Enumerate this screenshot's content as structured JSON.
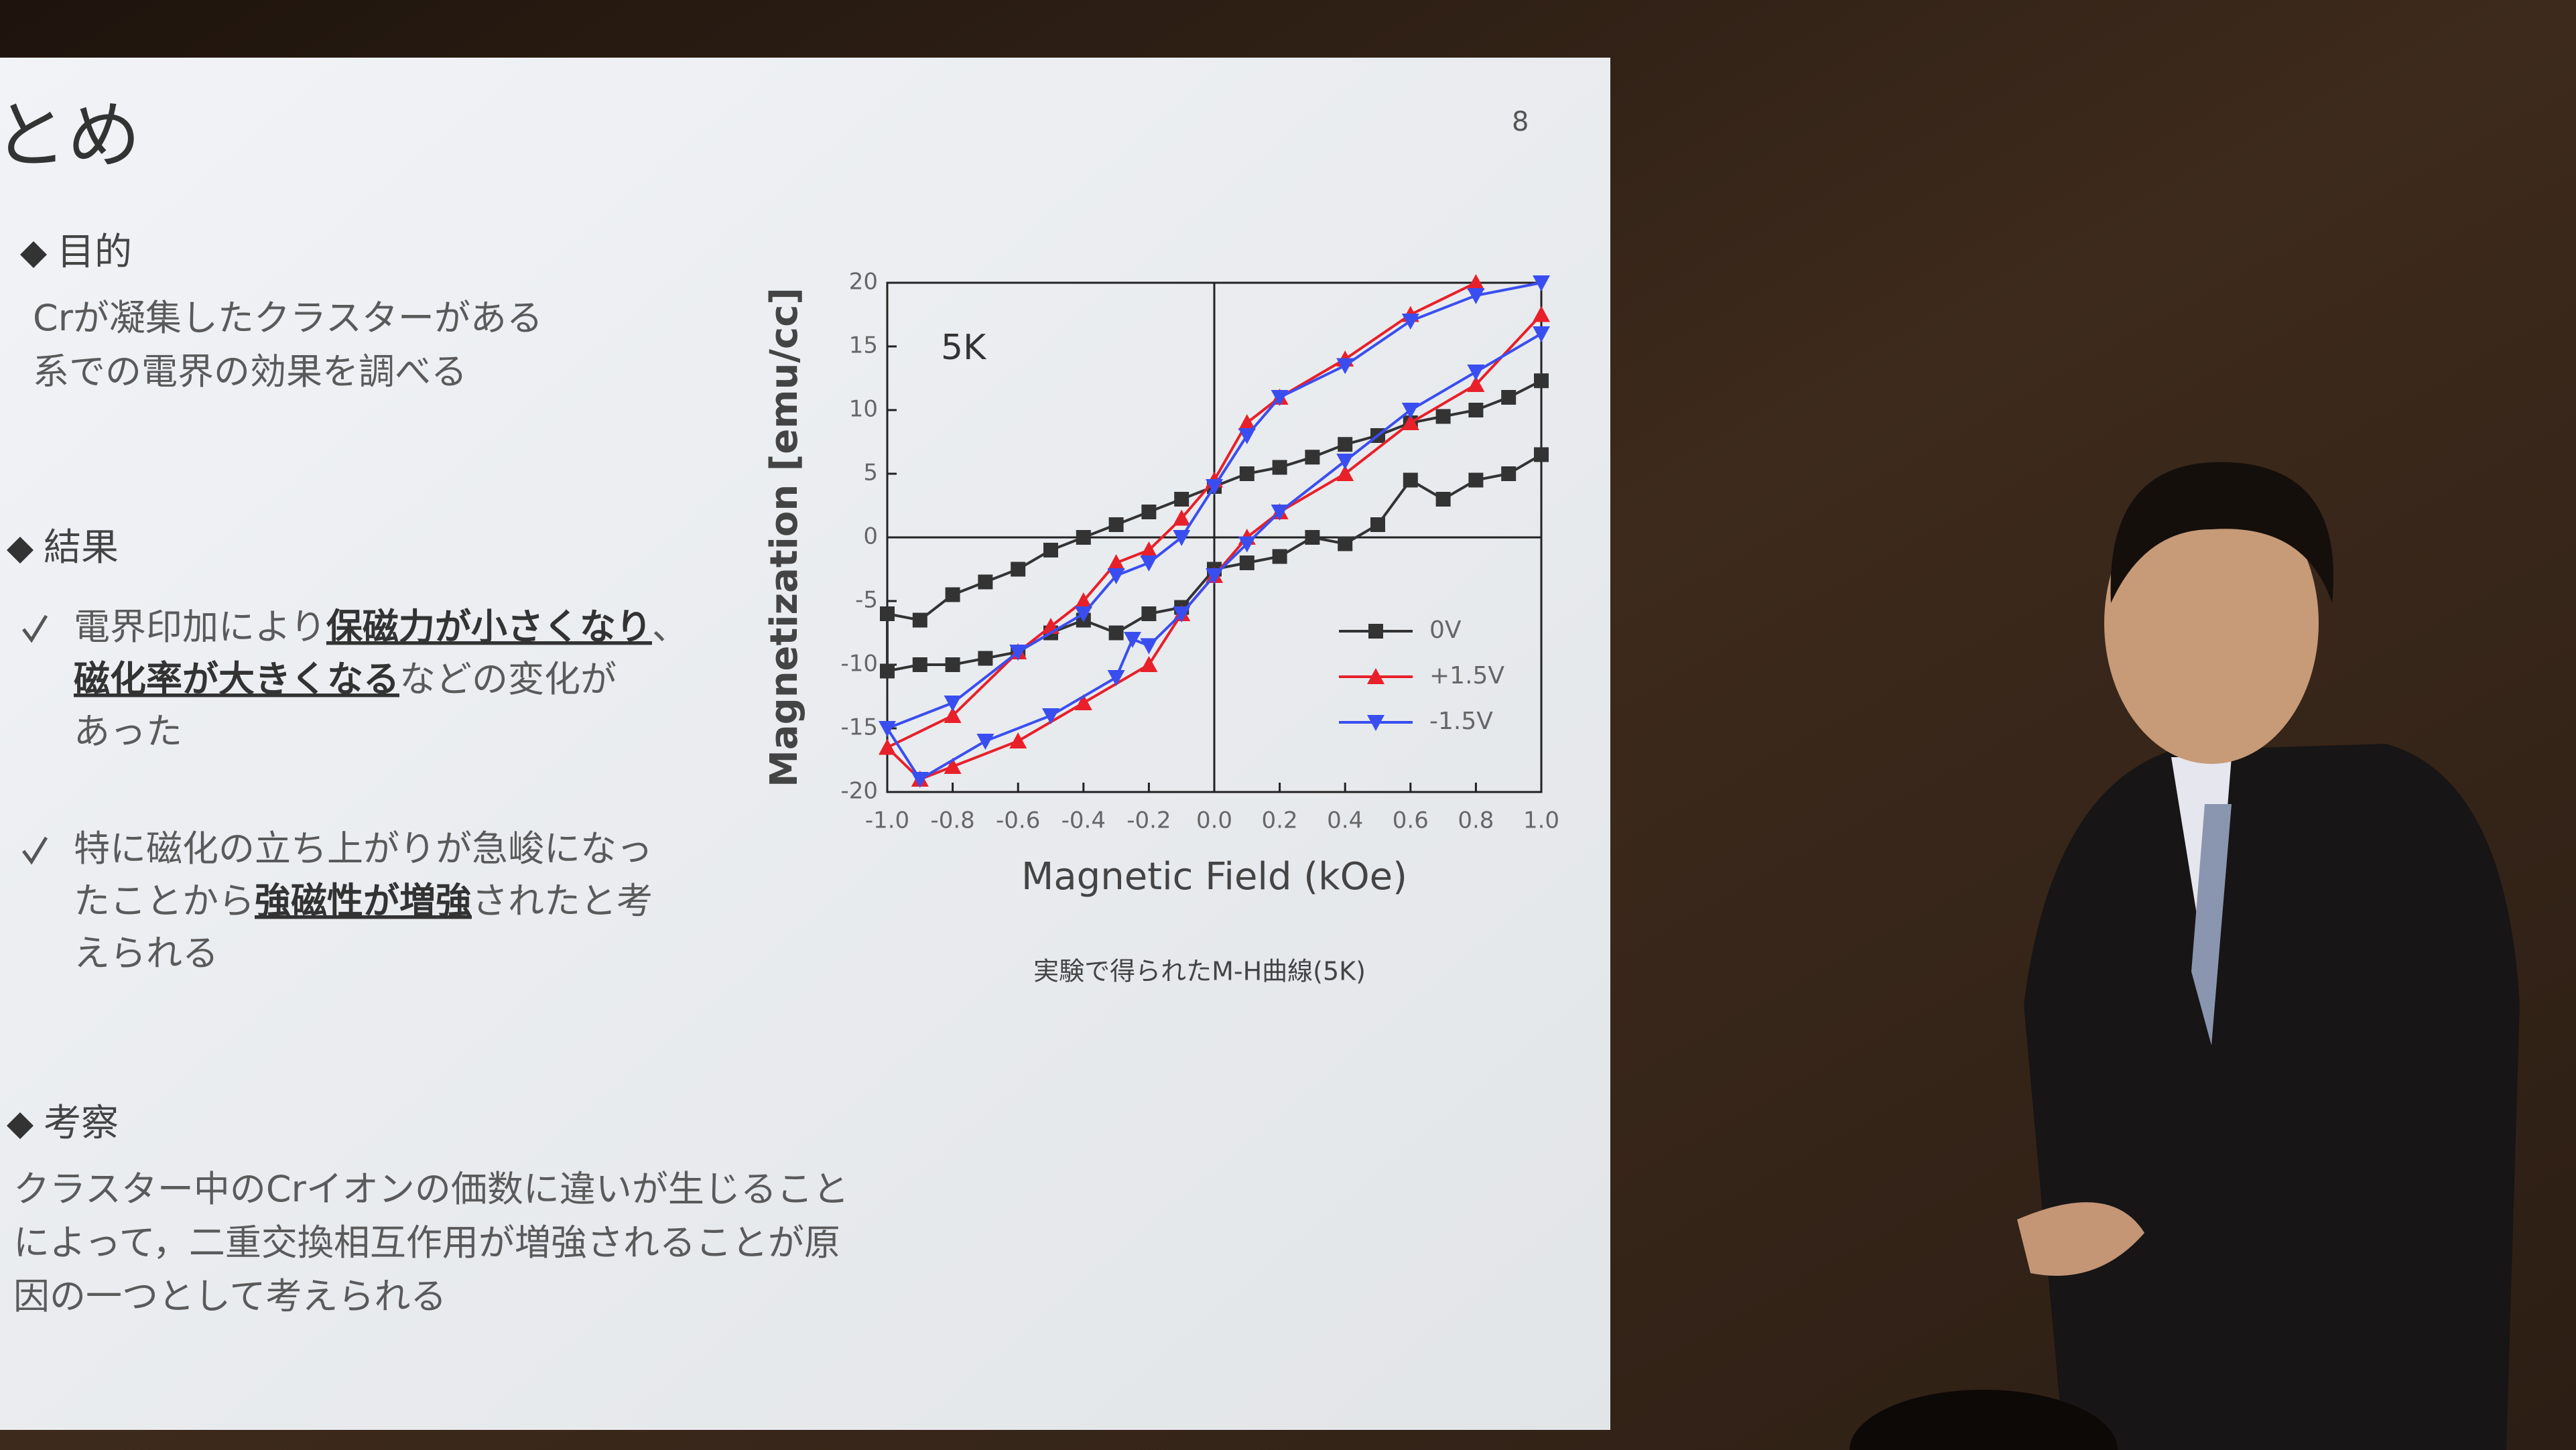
{
  "slide": {
    "page_number": "8",
    "title": "とめ",
    "sections": [
      {
        "heading": "目的",
        "lines": [
          [
            {
              "text": "Crが凝集したクラスターがある"
            }
          ],
          [
            {
              "text": "系での電界の効果を調べる"
            }
          ]
        ]
      },
      {
        "heading": "結果",
        "items": [
          {
            "lines": [
              [
                {
                  "text": "電界印加により"
                },
                {
                  "text": "保磁力が小さくなり",
                  "emphasis": true
                },
                {
                  "text": "、"
                }
              ],
              [
                {
                  "text": "磁化率が大きくなる",
                  "emphasis": true
                },
                {
                  "text": "などの変化が"
                }
              ],
              [
                {
                  "text": "あった"
                }
              ]
            ]
          },
          {
            "lines": [
              [
                {
                  "text": "特に磁化の立ち上がりが急峻になっ"
                }
              ],
              [
                {
                  "text": "たことから"
                },
                {
                  "text": "強磁性が増強",
                  "emphasis": true
                },
                {
                  "text": "されたと考"
                }
              ],
              [
                {
                  "text": "えられる"
                }
              ]
            ]
          }
        ]
      },
      {
        "heading": "考察",
        "lines": [
          [
            {
              "text": "クラスター中のCrイオンの価数に違いが生じること"
            }
          ],
          [
            {
              "text": "によって，二重交換相互作用が増強されることが原"
            }
          ],
          [
            {
              "text": "因の一つとして考えられる"
            }
          ]
        ]
      }
    ],
    "caption": "実験で得られたM-H曲線(5K)"
  },
  "chart_data": {
    "type": "line",
    "annotation": "5K",
    "xlabel": "Magnetic Field  (kOe)",
    "ylabel": "Magnetization [emu/cc]",
    "xlim": [
      -1,
      1
    ],
    "ylim": [
      -20,
      20
    ],
    "xticks": [
      {
        "value": -1,
        "label": "-1.0"
      },
      -0.8,
      -0.6,
      -0.4,
      -0.2,
      {
        "value": 0,
        "label": "0.0"
      },
      0.2,
      0.4,
      0.6,
      0.8,
      {
        "value": 1,
        "label": "1.0"
      }
    ],
    "yticks": [
      -20,
      -15,
      -10,
      -5,
      0,
      5,
      10,
      15,
      20
    ],
    "legend": "right",
    "series": [
      {
        "name": "0V",
        "color": "#333333",
        "marker": "square",
        "x": [
          1,
          0.9,
          0.8,
          0.7,
          0.6,
          0.5,
          0.4,
          0.3,
          0.2,
          0.1,
          0,
          -0.1,
          -0.2,
          -0.3,
          -0.4,
          -0.5,
          -0.6,
          -0.7,
          -0.8,
          -0.9,
          -1,
          -1,
          -0.9,
          -0.8,
          -0.7,
          -0.6,
          -0.5,
          -0.4,
          -0.3,
          -0.2,
          -0.1,
          0,
          0.1,
          0.2,
          0.3,
          0.4,
          0.5,
          0.6,
          0.7,
          0.8,
          0.9,
          1
        ],
        "values": [
          12.3,
          11,
          10,
          9.5,
          9,
          8,
          7.3,
          6.3,
          5.5,
          5,
          4,
          3,
          2,
          1,
          0,
          -1,
          -2.5,
          -3.5,
          -4.5,
          -6.5,
          -6,
          -10.5,
          -10,
          -10,
          -9.5,
          -9,
          -7.5,
          -6.5,
          -7.5,
          -6,
          -5.5,
          -2.5,
          -2,
          -1.5,
          0,
          -0.5,
          1,
          4.5,
          3,
          4.5,
          5,
          6.5
        ]
      },
      {
        "name": "+1.5V",
        "color": "#e8202a",
        "marker": "triangle-up",
        "x": [
          0.8,
          0.6,
          0.4,
          0.2,
          0.1,
          0,
          -0.1,
          -0.2,
          -0.3,
          -0.4,
          -0.5,
          -0.6,
          -0.8,
          -1,
          -0.9,
          -0.8,
          -0.6,
          -0.4,
          -0.2,
          -0.1,
          0,
          0.1,
          0.2,
          0.4,
          0.6,
          0.8,
          1
        ],
        "values": [
          20,
          17.5,
          14,
          11,
          9,
          4.5,
          1.5,
          -1,
          -2,
          -5,
          -7,
          -9,
          -14,
          -16.5,
          -19,
          -18,
          -16,
          -13,
          -10,
          -6,
          -3,
          0,
          2,
          5,
          9,
          12,
          17.5
        ]
      },
      {
        "name": "-1.5V",
        "color": "#3a4ef0",
        "marker": "triangle-down",
        "x": [
          1,
          0.8,
          0.6,
          0.4,
          0.2,
          0.1,
          0,
          -0.1,
          -0.2,
          -0.3,
          -0.4,
          -0.6,
          -0.8,
          -1,
          -0.9,
          -0.7,
          -0.5,
          -0.3,
          -0.25,
          -0.2,
          -0.1,
          0,
          0.1,
          0.2,
          0.4,
          0.6,
          0.8,
          1
        ],
        "values": [
          20,
          19,
          17,
          13.5,
          11,
          8,
          4,
          0,
          -2,
          -3,
          -6,
          -9,
          -13,
          -15,
          -19,
          -16,
          -14,
          -11,
          -8,
          -8.5,
          -6,
          -3,
          -0.5,
          2,
          6,
          10,
          13,
          16
        ]
      }
    ]
  }
}
